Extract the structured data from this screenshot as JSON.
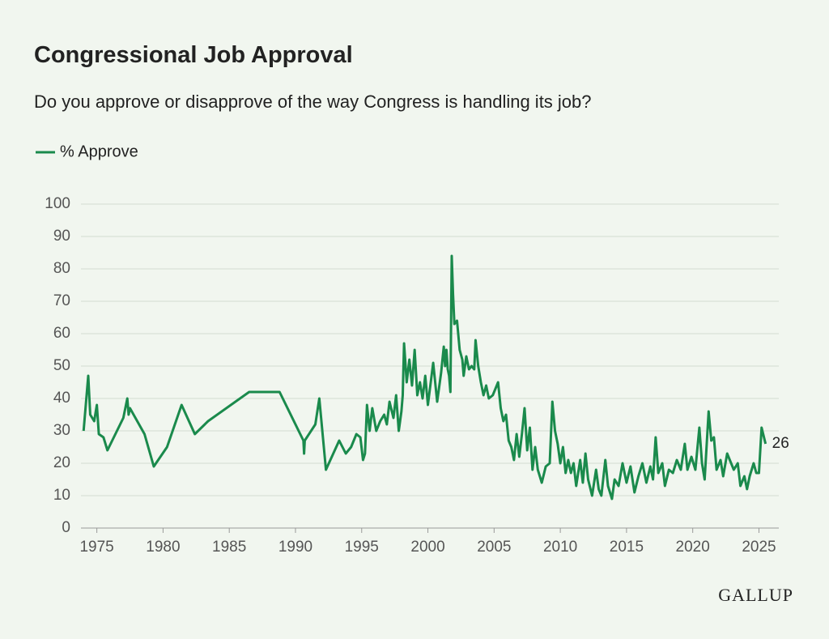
{
  "chart_data": {
    "type": "line",
    "title": "Congressional Job Approval",
    "subtitle": "Do you approve or disapprove of the way Congress is handling its job?",
    "logo": "GALLUP",
    "x": [
      1974.0,
      1974.35,
      1974.5,
      1974.8,
      1975.0,
      1975.15,
      1975.5,
      1975.8,
      1977.0,
      1977.3,
      1977.4,
      1977.5,
      1978.6,
      1979.3,
      1980.3,
      1981.4,
      1982.4,
      1983.4,
      1986.5,
      1988.8,
      1990.6,
      1990.65,
      1990.7,
      1991.5,
      1991.8,
      1992.3,
      1993.3,
      1993.8,
      1994.2,
      1994.6,
      1994.9,
      1995.1,
      1995.25,
      1995.4,
      1995.6,
      1995.8,
      1996.1,
      1996.4,
      1996.7,
      1996.9,
      1997.1,
      1997.4,
      1997.6,
      1997.8,
      1998.0,
      1998.1,
      1998.2,
      1998.4,
      1998.6,
      1998.8,
      1999.0,
      1999.2,
      1999.4,
      1999.6,
      1999.8,
      2000.0,
      2000.4,
      2000.7,
      2001.0,
      2001.2,
      2001.3,
      2001.4,
      2001.5,
      2001.6,
      2001.7,
      2001.8,
      2001.9,
      2002.0,
      2002.2,
      2002.4,
      2002.6,
      2002.7,
      2002.9,
      2003.1,
      2003.3,
      2003.5,
      2003.6,
      2003.8,
      2004.0,
      2004.2,
      2004.4,
      2004.6,
      2004.9,
      2005.1,
      2005.3,
      2005.5,
      2005.7,
      2005.9,
      2006.1,
      2006.3,
      2006.5,
      2006.7,
      2006.9,
      2007.1,
      2007.3,
      2007.5,
      2007.7,
      2007.9,
      2008.1,
      2008.3,
      2008.6,
      2008.9,
      2009.2,
      2009.4,
      2009.6,
      2009.8,
      2010.0,
      2010.2,
      2010.4,
      2010.6,
      2010.8,
      2011.0,
      2011.2,
      2011.5,
      2011.7,
      2011.9,
      2012.1,
      2012.4,
      2012.7,
      2012.9,
      2013.1,
      2013.4,
      2013.6,
      2013.9,
      2014.1,
      2014.4,
      2014.7,
      2015.0,
      2015.3,
      2015.6,
      2015.9,
      2016.2,
      2016.5,
      2016.8,
      2017.0,
      2017.2,
      2017.4,
      2017.7,
      2017.9,
      2018.2,
      2018.5,
      2018.8,
      2019.1,
      2019.4,
      2019.6,
      2019.9,
      2020.2,
      2020.5,
      2020.7,
      2020.9,
      2021.2,
      2021.4,
      2021.6,
      2021.8,
      2022.1,
      2022.3,
      2022.6,
      2022.9,
      2023.1,
      2023.4,
      2023.6,
      2023.9,
      2024.1,
      2024.3,
      2024.6,
      2024.8,
      2025.0,
      2025.2,
      2025.5
    ],
    "series": [
      {
        "name": "% Approve",
        "color": "#1a8a4c",
        "values": [
          30,
          47,
          35,
          33,
          38,
          29,
          28,
          24,
          34,
          40,
          35,
          37,
          29,
          19,
          25,
          38,
          29,
          33,
          42,
          42,
          27,
          23,
          27,
          32,
          40,
          18,
          27,
          23,
          25,
          29,
          28,
          21,
          23,
          38,
          30,
          37,
          30,
          33,
          35,
          32,
          39,
          34,
          41,
          30,
          36,
          41,
          57,
          45,
          52,
          44,
          55,
          41,
          45,
          40,
          47,
          38,
          51,
          39,
          48,
          56,
          50,
          55,
          49,
          47,
          42,
          84,
          72,
          63,
          64,
          55,
          52,
          47,
          53,
          49,
          50,
          49,
          58,
          50,
          45,
          41,
          44,
          40,
          41,
          43,
          45,
          37,
          33,
          35,
          27,
          25,
          21,
          29,
          22,
          29,
          37,
          24,
          31,
          18,
          25,
          18,
          14,
          19,
          20,
          39,
          30,
          26,
          20,
          25,
          17,
          21,
          17,
          20,
          13,
          21,
          14,
          23,
          15,
          10,
          18,
          12,
          10,
          21,
          13,
          9,
          15,
          13,
          20,
          14,
          19,
          11,
          16,
          20,
          14,
          19,
          15,
          28,
          17,
          20,
          13,
          18,
          17,
          21,
          18,
          26,
          18,
          22,
          18,
          31,
          20,
          15,
          36,
          27,
          28,
          18,
          21,
          16,
          23,
          20,
          18,
          20,
          13,
          16,
          12,
          16,
          20,
          17,
          17,
          31,
          26
        ]
      }
    ],
    "xlim": [
      1973.8,
      2026.5
    ],
    "xticks": [
      1975,
      1980,
      1985,
      1990,
      1995,
      2000,
      2005,
      2010,
      2015,
      2020,
      2025
    ],
    "ylim": [
      0,
      100
    ],
    "yticks": [
      0,
      10,
      20,
      30,
      40,
      50,
      60,
      70,
      80,
      90,
      100
    ],
    "grid": true,
    "legend": "top-left"
  }
}
